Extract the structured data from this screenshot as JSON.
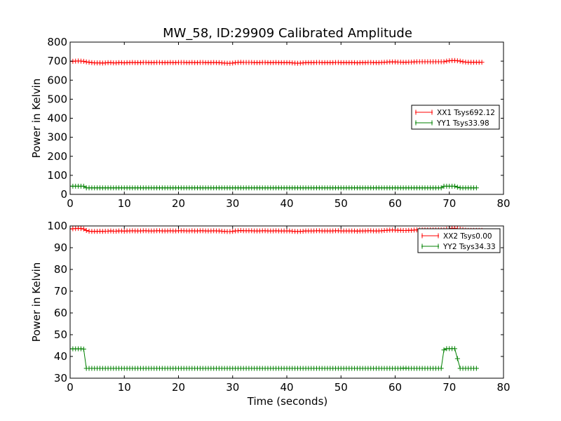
{
  "title": "MW_58, ID:29909 Calibrated Amplitude",
  "xlabel": "Time (seconds)",
  "chart_data": [
    {
      "type": "line",
      "title": "MW_58, ID:29909 Calibrated Amplitude",
      "xlabel": "",
      "ylabel": "Power in Kelvin",
      "xlim": [
        0,
        80
      ],
      "ylim": [
        0,
        800
      ],
      "xticks": [
        0,
        10,
        20,
        30,
        40,
        50,
        60,
        70,
        80
      ],
      "yticks": [
        0,
        100,
        200,
        300,
        400,
        500,
        600,
        700,
        800
      ],
      "grid": false,
      "legend_position": "center-right",
      "series": [
        {
          "name": "XX1 Tsys692.12",
          "color": "#ff0000",
          "marker": "+",
          "x_start": 0.0,
          "x_step": 0.5,
          "values": [
            698,
            699,
            700,
            701,
            700,
            699,
            696,
            694,
            692,
            691,
            691,
            691,
            690,
            691,
            692,
            692,
            691,
            691,
            692,
            692,
            691,
            692,
            692,
            693,
            692,
            692,
            692,
            693,
            693,
            692,
            692,
            692,
            693,
            693,
            692,
            692,
            692,
            693,
            692,
            692,
            693,
            693,
            693,
            692,
            692,
            693,
            692,
            692,
            693,
            693,
            692,
            692,
            692,
            693,
            692,
            692,
            691,
            690,
            689,
            689,
            690,
            692,
            693,
            694,
            693,
            693,
            693,
            693,
            692,
            692,
            692,
            693,
            693,
            692,
            692,
            692,
            693,
            692,
            692,
            692,
            692,
            692,
            691,
            690,
            689,
            690,
            691,
            692,
            692,
            692,
            692,
            693,
            693,
            692,
            692,
            692,
            692,
            692,
            693,
            693,
            692,
            692,
            692,
            692,
            692,
            692,
            691,
            692,
            692,
            692,
            693,
            693,
            692,
            692,
            692,
            693,
            694,
            695,
            696,
            696,
            696,
            695,
            695,
            694,
            694,
            695,
            695,
            696,
            697,
            697,
            697,
            697,
            697,
            697,
            697,
            697,
            697,
            697,
            697,
            700,
            702,
            703,
            703,
            702,
            700,
            697,
            695,
            694,
            694,
            694,
            694,
            694,
            694
          ]
        },
        {
          "name": "YY1 Tsys33.98",
          "color": "#008000",
          "marker": "+",
          "x_start": 0.0,
          "x_step": 0.5,
          "values": [
            43,
            43,
            43,
            43,
            43,
            43,
            34,
            34,
            34,
            34,
            34,
            34,
            34,
            34,
            34,
            34,
            34,
            34,
            34,
            34,
            34,
            34,
            34,
            34,
            34,
            34,
            34,
            34,
            34,
            34,
            34,
            34,
            34,
            34,
            34,
            34,
            34,
            34,
            34,
            34,
            34,
            34,
            34,
            34,
            34,
            34,
            34,
            34,
            34,
            34,
            34,
            34,
            34,
            34,
            34,
            34,
            34,
            34,
            34,
            34,
            34,
            34,
            34,
            34,
            34,
            34,
            34,
            34,
            34,
            34,
            34,
            34,
            34,
            34,
            34,
            34,
            34,
            34,
            34,
            34,
            34,
            34,
            34,
            34,
            34,
            34,
            34,
            34,
            34,
            34,
            34,
            34,
            34,
            34,
            34,
            34,
            34,
            34,
            34,
            34,
            34,
            34,
            34,
            34,
            34,
            34,
            34,
            34,
            34,
            34,
            34,
            34,
            34,
            34,
            34,
            34,
            34,
            34,
            34,
            34,
            34,
            34,
            34,
            34,
            34,
            34,
            34,
            34,
            34,
            34,
            34,
            34,
            34,
            34,
            34,
            34,
            34,
            34,
            43,
            43,
            43,
            43,
            43,
            38,
            34,
            34,
            34,
            34,
            34,
            34,
            34
          ]
        }
      ]
    },
    {
      "type": "line",
      "title": "",
      "xlabel": "Time (seconds)",
      "ylabel": "Power in Kelvin",
      "xlim": [
        0,
        80
      ],
      "ylim": [
        30,
        100
      ],
      "xticks": [
        0,
        10,
        20,
        30,
        40,
        50,
        60,
        70,
        80
      ],
      "yticks": [
        30,
        40,
        50,
        60,
        70,
        80,
        90,
        100
      ],
      "grid": false,
      "legend_position": "top-right",
      "series": [
        {
          "name": "XX2 Tsys0.00",
          "color": "#ff0000",
          "marker": "+",
          "x_start": 0.0,
          "x_step": 0.5,
          "values": [
            98.6,
            98.7,
            98.8,
            98.9,
            98.8,
            98.6,
            97.9,
            97.6,
            97.5,
            97.5,
            97.5,
            97.6,
            97.5,
            97.6,
            97.6,
            97.7,
            97.6,
            97.6,
            97.7,
            97.7,
            97.6,
            97.7,
            97.7,
            97.8,
            97.7,
            97.7,
            97.7,
            97.8,
            97.8,
            97.7,
            97.7,
            97.7,
            97.8,
            97.8,
            97.7,
            97.7,
            97.7,
            97.8,
            97.7,
            97.7,
            97.8,
            97.8,
            97.8,
            97.7,
            97.7,
            97.8,
            97.7,
            97.7,
            97.8,
            97.8,
            97.7,
            97.7,
            97.7,
            97.8,
            97.7,
            97.7,
            97.6,
            97.5,
            97.4,
            97.4,
            97.5,
            97.7,
            97.8,
            97.9,
            97.8,
            97.8,
            97.8,
            97.8,
            97.7,
            97.7,
            97.7,
            97.8,
            97.8,
            97.7,
            97.7,
            97.7,
            97.8,
            97.7,
            97.7,
            97.7,
            97.7,
            97.7,
            97.6,
            97.5,
            97.4,
            97.5,
            97.6,
            97.7,
            97.7,
            97.7,
            97.7,
            97.8,
            97.8,
            97.7,
            97.7,
            97.7,
            97.7,
            97.7,
            97.8,
            97.8,
            97.7,
            97.7,
            97.7,
            97.7,
            97.7,
            97.7,
            97.6,
            97.7,
            97.7,
            97.7,
            97.8,
            97.8,
            97.7,
            97.7,
            97.7,
            97.8,
            97.9,
            98.0,
            98.1,
            98.1,
            98.1,
            98.0,
            98.0,
            97.9,
            97.9,
            98.0,
            98.0,
            98.1,
            98.2,
            98.2,
            98.2,
            98.2,
            98.2,
            98.2,
            98.2,
            98.2,
            98.2,
            98.2,
            98.2,
            98.5,
            98.7,
            98.9,
            98.9,
            98.7,
            98.5,
            98.3,
            98.1,
            98.0,
            98.0,
            98.0,
            98.0,
            98.0,
            98.0
          ]
        },
        {
          "name": "YY2 Tsys34.33",
          "color": "#008000",
          "marker": "+",
          "x_start": 0.0,
          "x_step": 0.5,
          "values": [
            43.5,
            43.5,
            43.5,
            43.5,
            43.5,
            43.4,
            34.5,
            34.5,
            34.5,
            34.5,
            34.5,
            34.5,
            34.5,
            34.5,
            34.5,
            34.5,
            34.5,
            34.5,
            34.5,
            34.5,
            34.5,
            34.5,
            34.5,
            34.5,
            34.5,
            34.5,
            34.5,
            34.5,
            34.5,
            34.5,
            34.5,
            34.5,
            34.5,
            34.5,
            34.5,
            34.5,
            34.5,
            34.5,
            34.5,
            34.5,
            34.5,
            34.5,
            34.5,
            34.5,
            34.5,
            34.5,
            34.5,
            34.5,
            34.5,
            34.5,
            34.5,
            34.5,
            34.5,
            34.5,
            34.5,
            34.5,
            34.5,
            34.5,
            34.5,
            34.5,
            34.5,
            34.5,
            34.5,
            34.5,
            34.5,
            34.5,
            34.5,
            34.5,
            34.5,
            34.5,
            34.5,
            34.5,
            34.5,
            34.5,
            34.5,
            34.5,
            34.5,
            34.5,
            34.5,
            34.5,
            34.5,
            34.5,
            34.5,
            34.5,
            34.5,
            34.5,
            34.5,
            34.5,
            34.5,
            34.5,
            34.5,
            34.5,
            34.5,
            34.5,
            34.5,
            34.5,
            34.5,
            34.5,
            34.5,
            34.5,
            34.5,
            34.5,
            34.5,
            34.5,
            34.5,
            34.5,
            34.5,
            34.5,
            34.5,
            34.5,
            34.5,
            34.5,
            34.5,
            34.5,
            34.5,
            34.5,
            34.5,
            34.5,
            34.5,
            34.5,
            34.5,
            34.5,
            34.5,
            34.6,
            34.6,
            34.5,
            34.5,
            34.5,
            34.5,
            34.5,
            34.5,
            34.5,
            34.5,
            34.5,
            34.5,
            34.5,
            34.5,
            34.5,
            43.0,
            43.6,
            43.6,
            43.6,
            43.6,
            39.0,
            34.5,
            34.5,
            34.5,
            34.5,
            34.5,
            34.5,
            34.5
          ]
        }
      ]
    }
  ]
}
